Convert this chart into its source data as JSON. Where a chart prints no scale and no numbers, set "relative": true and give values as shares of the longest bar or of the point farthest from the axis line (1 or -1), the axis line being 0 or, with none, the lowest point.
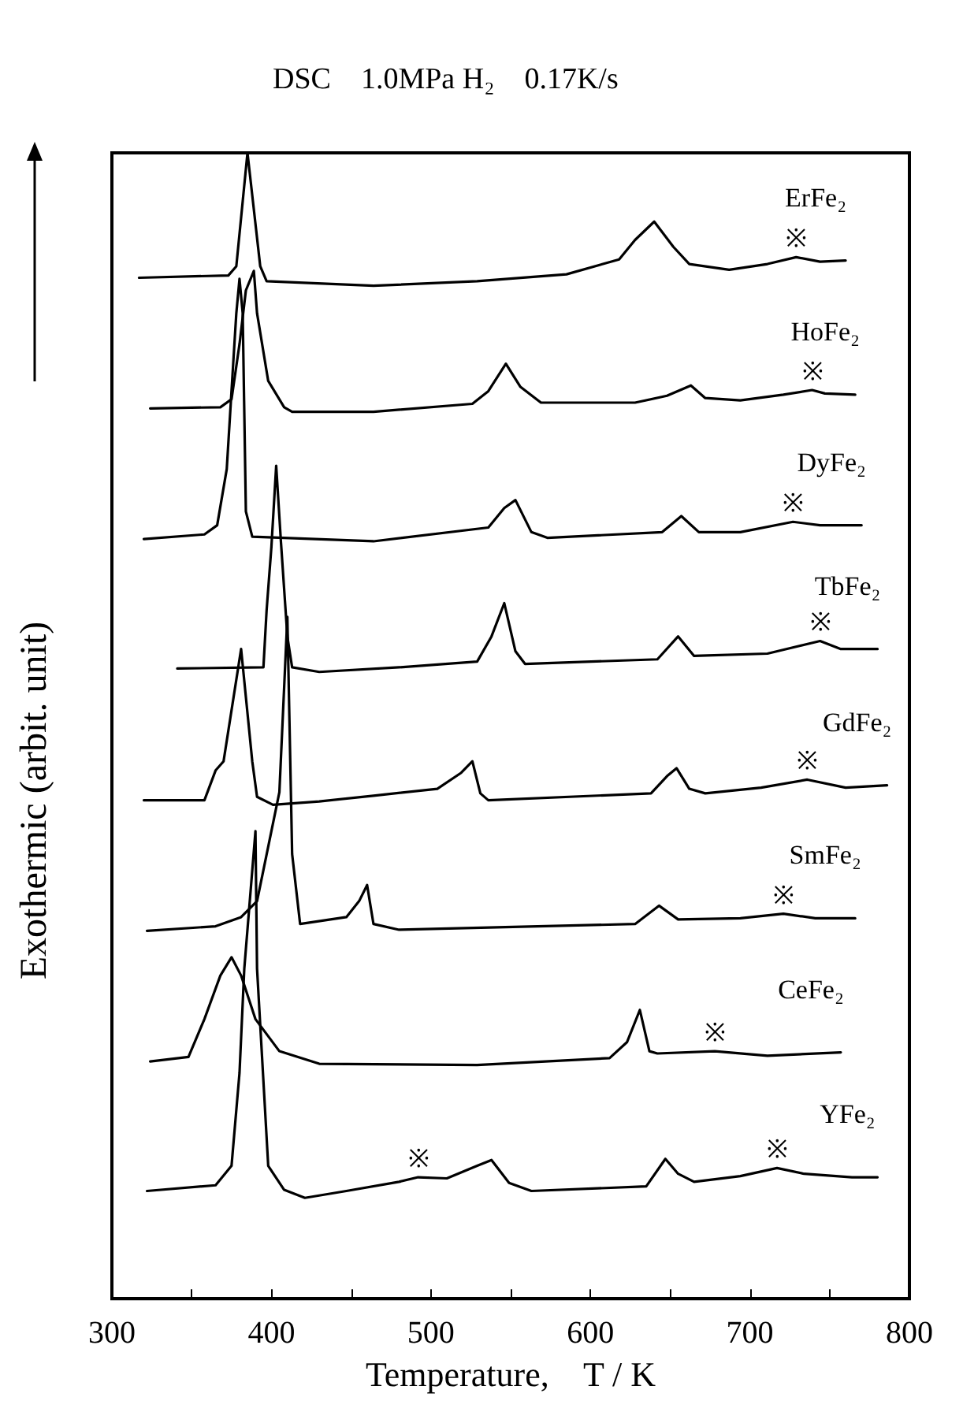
{
  "chart_data": {
    "type": "line",
    "title": "DSC    1.0MPa H₂    0.17K/s",
    "xlabel": "Temperature,    T / K",
    "ylabel": "Exothermic (arbit. unit)",
    "relative": true,
    "xlim": [
      300,
      800
    ],
    "xticks": [
      300,
      {
        "value": 350,
        "label": null
      },
      400,
      {
        "value": 450,
        "label": null
      },
      500,
      {
        "value": 550,
        "label": null
      },
      600,
      {
        "value": 650,
        "label": null
      },
      700,
      {
        "value": 750,
        "label": null
      },
      800
    ],
    "marker": "none",
    "line_style": "solid",
    "grid": false,
    "series": [
      {
        "name": "ErFe₂",
        "color": "#000000",
        "x": [
          317,
          373,
          378,
          385,
          393,
          397,
          464,
          529,
          585,
          618,
          628,
          640,
          652,
          662,
          687,
          711,
          729,
          744,
          760
        ],
        "values": [
          0.891,
          0.893,
          0.901,
          1.0,
          0.901,
          0.888,
          0.884,
          0.888,
          0.894,
          0.907,
          0.924,
          0.94,
          0.918,
          0.903,
          0.898,
          0.903,
          0.909,
          0.905,
          0.906
        ]
      },
      {
        "name": "HoFe₂",
        "color": "#000000",
        "x": [
          324,
          368,
          375,
          380,
          384,
          389,
          391,
          398,
          408,
          413,
          464,
          526,
          536,
          547,
          556,
          569,
          628,
          648,
          663,
          672,
          694,
          721,
          739,
          747,
          766
        ],
        "values": [
          0.777,
          0.778,
          0.785,
          0.833,
          0.88,
          0.897,
          0.86,
          0.801,
          0.778,
          0.774,
          0.774,
          0.781,
          0.792,
          0.816,
          0.796,
          0.782,
          0.782,
          0.788,
          0.797,
          0.786,
          0.784,
          0.789,
          0.793,
          0.79,
          0.789
        ]
      },
      {
        "name": "DyFe₂",
        "color": "#000000",
        "x": [
          320,
          358,
          366,
          372,
          376,
          378,
          380,
          382,
          384,
          388,
          464,
          536,
          546,
          553,
          563,
          573,
          645,
          657,
          668,
          694,
          727,
          744,
          770
        ],
        "values": [
          0.663,
          0.667,
          0.675,
          0.724,
          0.815,
          0.86,
          0.89,
          0.86,
          0.687,
          0.665,
          0.661,
          0.673,
          0.69,
          0.697,
          0.669,
          0.664,
          0.669,
          0.683,
          0.669,
          0.669,
          0.678,
          0.675,
          0.675
        ]
      },
      {
        "name": "TbFe₂",
        "color": "#000000",
        "x": [
          341,
          395,
          397,
          400,
          403,
          406,
          410,
          413,
          430,
          480,
          529,
          538,
          546,
          553,
          559,
          642,
          655,
          665,
          711,
          744,
          757,
          780
        ],
        "values": [
          0.55,
          0.551,
          0.601,
          0.656,
          0.727,
          0.66,
          0.578,
          0.551,
          0.547,
          0.551,
          0.556,
          0.578,
          0.607,
          0.565,
          0.554,
          0.558,
          0.578,
          0.561,
          0.563,
          0.574,
          0.567,
          0.567
        ]
      },
      {
        "name": "GdFe₂",
        "color": "#000000",
        "x": [
          320,
          358,
          365,
          370,
          381,
          388,
          391,
          401,
          430,
          464,
          504,
          519,
          526,
          531,
          536,
          638,
          648,
          654,
          662,
          672,
          707,
          736,
          760,
          786
        ],
        "values": [
          0.435,
          0.435,
          0.461,
          0.469,
          0.567,
          0.469,
          0.438,
          0.431,
          0.434,
          0.439,
          0.445,
          0.459,
          0.469,
          0.441,
          0.435,
          0.441,
          0.456,
          0.463,
          0.445,
          0.441,
          0.446,
          0.453,
          0.446,
          0.448
        ]
      },
      {
        "name": "SmFe₂",
        "color": "#000000",
        "x": [
          322,
          365,
          381,
          391,
          405,
          410,
          413,
          418,
          447,
          455,
          460,
          464,
          480,
          628,
          643,
          655,
          694,
          721,
          741,
          766
        ],
        "values": [
          0.321,
          0.325,
          0.333,
          0.347,
          0.442,
          0.595,
          0.388,
          0.327,
          0.333,
          0.347,
          0.361,
          0.327,
          0.322,
          0.327,
          0.343,
          0.331,
          0.332,
          0.336,
          0.332,
          0.332
        ]
      },
      {
        "name": "CeFe₂",
        "color": "#000000",
        "x": [
          324,
          348,
          358,
          368,
          375,
          381,
          390,
          405,
          430,
          529,
          612,
          623,
          631,
          637,
          642,
          678,
          711,
          757
        ],
        "values": [
          0.207,
          0.211,
          0.244,
          0.282,
          0.298,
          0.282,
          0.244,
          0.216,
          0.205,
          0.204,
          0.21,
          0.224,
          0.252,
          0.216,
          0.214,
          0.216,
          0.212,
          0.215
        ]
      },
      {
        "name": "YFe₂",
        "color": "#000000",
        "x": [
          322,
          365,
          375,
          380,
          383,
          390,
          391,
          398,
          408,
          421,
          447,
          480,
          492,
          510,
          529,
          538,
          549,
          563,
          635,
          647,
          655,
          665,
          694,
          717,
          734,
          764,
          780
        ],
        "values": [
          0.094,
          0.099,
          0.116,
          0.197,
          0.288,
          0.408,
          0.288,
          0.116,
          0.095,
          0.088,
          0.094,
          0.102,
          0.106,
          0.105,
          0.116,
          0.121,
          0.101,
          0.094,
          0.098,
          0.122,
          0.109,
          0.102,
          0.107,
          0.114,
          0.109,
          0.106,
          0.106
        ]
      }
    ],
    "annotations": [
      {
        "text": "※",
        "x": 729,
        "y": 0.909
      },
      {
        "text": "※",
        "x": 739,
        "y": 0.793
      },
      {
        "text": "※",
        "x": 727,
        "y": 0.678
      },
      {
        "text": "※",
        "x": 744,
        "y": 0.574
      },
      {
        "text": "※",
        "x": 736,
        "y": 0.453
      },
      {
        "text": "※",
        "x": 721,
        "y": 0.336
      },
      {
        "text": "※",
        "x": 678,
        "y": 0.216
      },
      {
        "text": "※",
        "x": 492,
        "y": 0.106
      },
      {
        "text": "※",
        "x": 717,
        "y": 0.114
      }
    ]
  }
}
